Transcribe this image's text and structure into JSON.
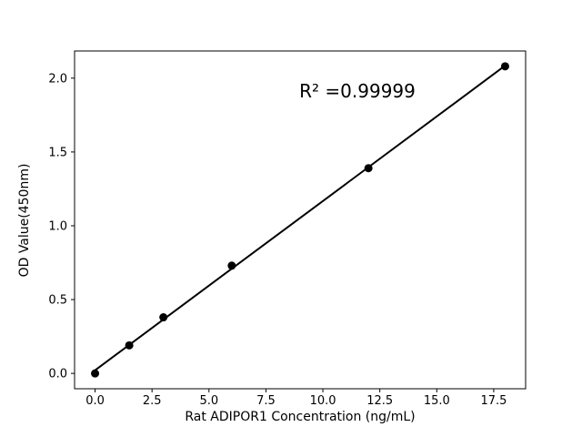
{
  "chart_data": {
    "type": "scatter",
    "title": "",
    "xlabel": "Rat ADIPOR1 Concentration (ng/mL)",
    "ylabel": "OD Value(450nm)",
    "annotation": "R² =0.99999",
    "x": [
      0,
      1.5,
      3,
      6,
      12,
      18
    ],
    "y": [
      0.0,
      0.19,
      0.38,
      0.73,
      1.39,
      2.08
    ],
    "xticks": [
      "0.0",
      "2.5",
      "5.0",
      "7.5",
      "10.0",
      "12.5",
      "15.0",
      "17.5"
    ],
    "yticks": [
      "0.0",
      "0.5",
      "1.0",
      "1.5",
      "2.0"
    ],
    "xlim": [
      -0.9,
      18.9
    ],
    "ylim": [
      -0.104,
      2.184
    ],
    "grid": false,
    "legend": null,
    "trendline": true,
    "marker_color": "#000000",
    "line_color": "#000000",
    "axis_color": "#000000",
    "background_color": "#ffffff"
  }
}
